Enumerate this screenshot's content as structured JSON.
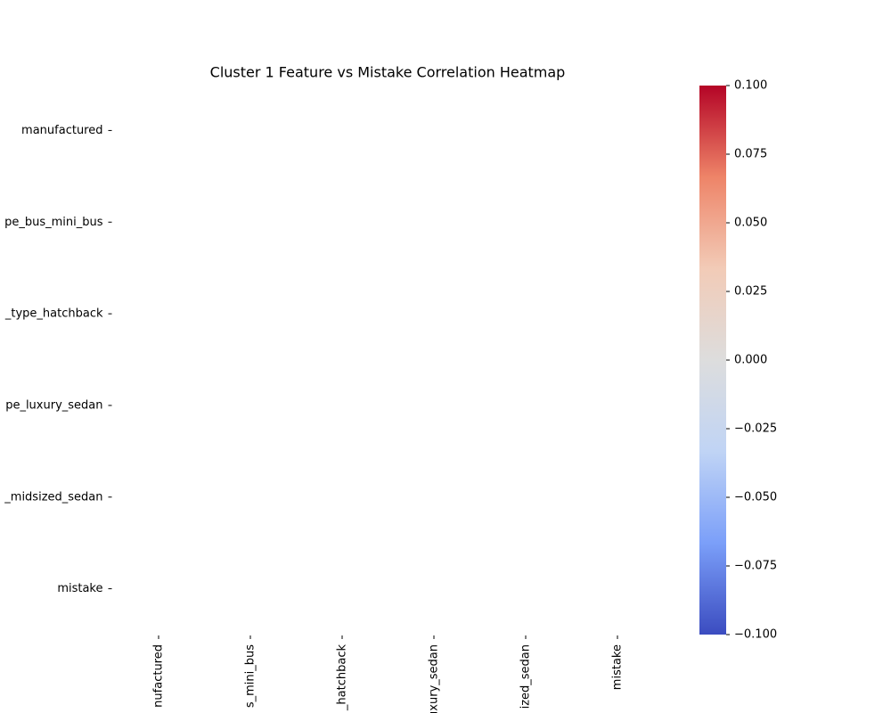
{
  "chart_data": {
    "type": "heatmap",
    "title": "Cluster 1 Feature vs Mistake Correlation Heatmap",
    "x_labels": [
      "nufactured",
      "s_mini_bus",
      "_hatchback",
      "uxury_sedan",
      "ized_sedan",
      "mistake"
    ],
    "y_labels": [
      "manufactured",
      "pe_bus_mini_bus",
      "_type_hatchback",
      "pe_luxury_sedan",
      "_midsized_sedan",
      "mistake"
    ],
    "values": [
      [
        null,
        null,
        null,
        null,
        null,
        null
      ],
      [
        null,
        null,
        null,
        null,
        null,
        null
      ],
      [
        null,
        null,
        null,
        null,
        null,
        null
      ],
      [
        null,
        null,
        null,
        null,
        null,
        null
      ],
      [
        null,
        null,
        null,
        null,
        null,
        null
      ],
      [
        null,
        null,
        null,
        null,
        null,
        null
      ]
    ],
    "clim": [
      -0.1,
      0.1
    ],
    "cticks": [
      {
        "value": -0.1,
        "label": "−0.100"
      },
      {
        "value": -0.075,
        "label": "−0.075"
      },
      {
        "value": -0.05,
        "label": "−0.050"
      },
      {
        "value": -0.025,
        "label": "−0.025"
      },
      {
        "value": 0,
        "label": "0.000"
      },
      {
        "value": 0.025,
        "label": "0.025"
      },
      {
        "value": 0.05,
        "label": "0.050"
      },
      {
        "value": 0.075,
        "label": "0.075"
      },
      {
        "value": 0.1,
        "label": "0.100"
      }
    ],
    "colormap": [
      "#3b4cc0",
      "#7b9ff9",
      "#c0d4f5",
      "#dddddd",
      "#f2cbb7",
      "#ee8468",
      "#b40426"
    ]
  }
}
